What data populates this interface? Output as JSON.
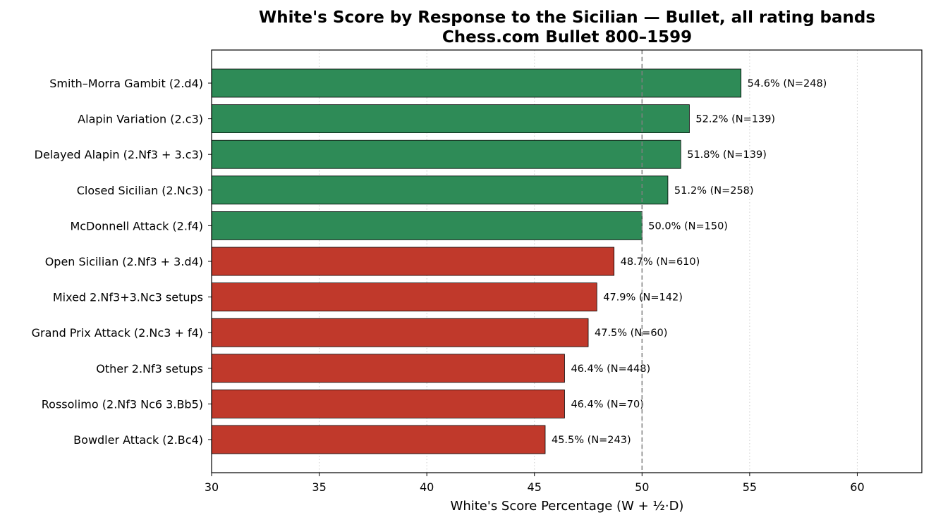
{
  "chart_data": {
    "type": "bar",
    "orientation": "horizontal",
    "title": "White's Score by Response to the Sicilian — Bullet, all rating bands",
    "subtitle": "Chess.com Bullet 800–1599",
    "xlabel": "White's Score Percentage  (W + ½·D)",
    "ylabel": "",
    "xlim": [
      30,
      63
    ],
    "xticks": [
      30,
      35,
      40,
      45,
      50,
      55,
      60
    ],
    "reference_line": 50,
    "grid": "vertical dotted",
    "colors": {
      "above": "#2e8b57",
      "below": "#c0392b",
      "reference": "#808080"
    },
    "bars": [
      {
        "label": "Smith–Morra Gambit (2.d4)",
        "value": 54.6,
        "n": 248,
        "annotation": "54.6%  (N=248)"
      },
      {
        "label": "Alapin Variation (2.c3)",
        "value": 52.2,
        "n": 139,
        "annotation": "52.2%  (N=139)"
      },
      {
        "label": "Delayed Alapin (2.Nf3 + 3.c3)",
        "value": 51.8,
        "n": 139,
        "annotation": "51.8%  (N=139)"
      },
      {
        "label": "Closed Sicilian (2.Nc3)",
        "value": 51.2,
        "n": 258,
        "annotation": "51.2%  (N=258)"
      },
      {
        "label": "McDonnell Attack (2.f4)",
        "value": 50.0,
        "n": 150,
        "annotation": "50.0%  (N=150)"
      },
      {
        "label": "Open Sicilian (2.Nf3 + 3.d4)",
        "value": 48.7,
        "n": 610,
        "annotation": "48.7%  (N=610)"
      },
      {
        "label": "Mixed 2.Nf3+3.Nc3 setups",
        "value": 47.9,
        "n": 142,
        "annotation": "47.9%  (N=142)"
      },
      {
        "label": "Grand Prix Attack (2.Nc3 + f4)",
        "value": 47.5,
        "n": 60,
        "annotation": "47.5%  (N=60)"
      },
      {
        "label": "Other 2.Nf3 setups",
        "value": 46.4,
        "n": 448,
        "annotation": "46.4%  (N=448)"
      },
      {
        "label": "Rossolimo (2.Nf3 Nc6 3.Bb5)",
        "value": 46.4,
        "n": 70,
        "annotation": "46.4%  (N=70)"
      },
      {
        "label": "Bowdler Attack (2.Bc4)",
        "value": 45.5,
        "n": 243,
        "annotation": "45.5%  (N=243)"
      }
    ]
  }
}
